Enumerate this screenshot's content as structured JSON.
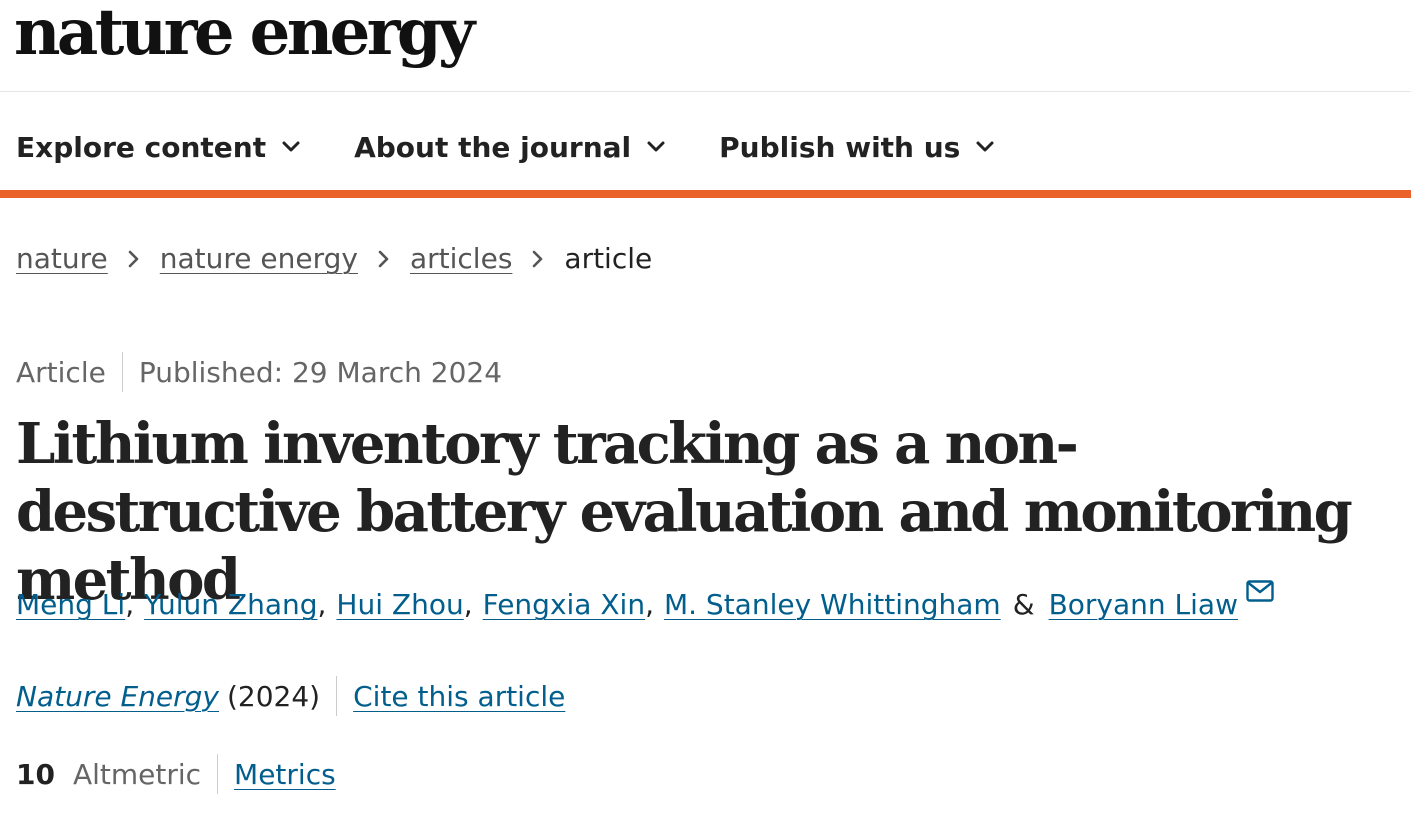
{
  "header": {
    "logo": "nature energy"
  },
  "nav": {
    "items": [
      {
        "label": "Explore content"
      },
      {
        "label": "About the journal"
      },
      {
        "label": "Publish with us"
      }
    ]
  },
  "breadcrumbs": {
    "items": [
      "nature",
      "nature energy",
      "articles"
    ],
    "current": "article"
  },
  "article": {
    "type": "Article",
    "published": "Published: 29 March 2024",
    "title": "Lithium inventory tracking as a non-destructive battery evaluation and monitoring method",
    "authors": [
      "Meng Li",
      "Yulun Zhang",
      "Hui Zhou",
      "Fengxia Xin",
      "M. Stanley Whittingham",
      "Boryann Liaw"
    ],
    "journal": "Nature Energy",
    "year": "(2024)",
    "cite_label": "Cite this article",
    "altmetric_count": "10",
    "altmetric_label": "Altmetric",
    "metrics_label": "Metrics"
  },
  "colors": {
    "accent": "#ea6129",
    "link": "#025e8d"
  }
}
